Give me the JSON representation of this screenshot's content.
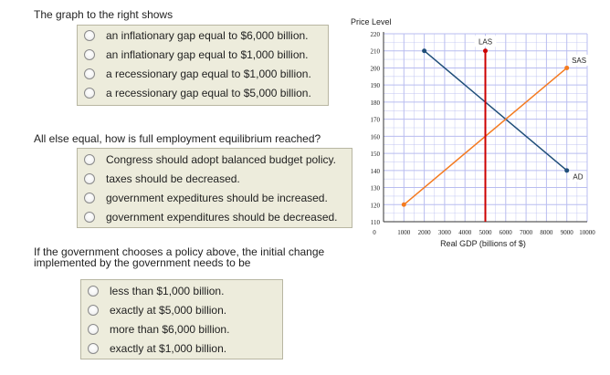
{
  "question1": {
    "prompt": "The graph to the right shows",
    "options": [
      "an inflationary gap equal to $6,000 billion.",
      "an inflationary gap equal to $1,000 billion.",
      "a recessionary gap equal to $1,000 billion.",
      "a recessionary gap equal to $5,000 billion."
    ]
  },
  "question2": {
    "prompt": "All else equal, how is full employment equilibrium reached?",
    "options": [
      "Congress should adopt balanced budget policy.",
      "taxes should be decreased.",
      "government expeditures should be increased.",
      "government expenditures should be decreased."
    ]
  },
  "question3": {
    "prompt_line1": "If the government chooses a policy above, the initial change",
    "prompt_line2": "implemented by the government needs to be",
    "options": [
      "less than $1,000 billion.",
      "exactly at $5,000 billion.",
      "more than $6,000 billion.",
      "exactly at $1,000 billion."
    ]
  },
  "colors": {
    "ad": "#1f4e79",
    "sas": "#f47b20",
    "las": "#cc0000",
    "grid": "#b9bdf0"
  },
  "chart_data": {
    "type": "line",
    "ylabel": "Price Level",
    "xlabel": "Real GDP (billions of $)",
    "xlim": [
      0,
      10000
    ],
    "ylim": [
      110,
      220
    ],
    "x_ticks": [
      0,
      1000,
      2000,
      3000,
      4000,
      5000,
      6000,
      7000,
      8000,
      9000,
      10000
    ],
    "y_ticks": [
      110,
      120,
      130,
      140,
      150,
      160,
      170,
      180,
      190,
      200,
      210,
      220
    ],
    "grid": true,
    "series": [
      {
        "name": "AD",
        "points": [
          [
            2000,
            210
          ],
          [
            9000,
            140
          ]
        ]
      },
      {
        "name": "SAS",
        "points": [
          [
            1000,
            120
          ],
          [
            9000,
            200
          ]
        ]
      },
      {
        "name": "LAS",
        "points": [
          [
            5000,
            110
          ],
          [
            5000,
            210
          ]
        ]
      }
    ]
  }
}
